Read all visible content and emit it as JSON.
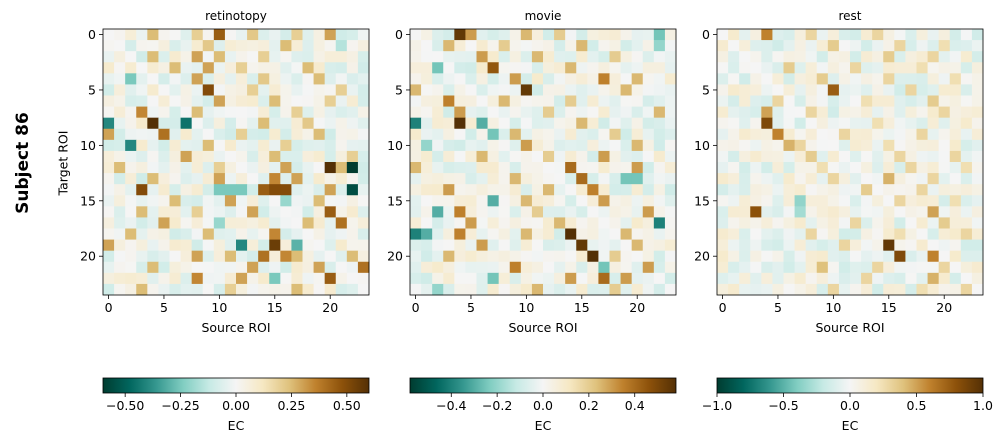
{
  "figure": {
    "subject_label": "Subject 86",
    "ylabel": "Target ROI",
    "colormap": "BrBG_r"
  },
  "colormap_stops": [
    "#003c30",
    "#01665e",
    "#35978f",
    "#80cdc1",
    "#c7eae5",
    "#f5f5f5",
    "#f6e8c3",
    "#dfc27d",
    "#bf812d",
    "#8c510a",
    "#543005"
  ],
  "chart_data": [
    {
      "type": "heatmap",
      "title": "retinotopy",
      "xlabel": "Source ROI",
      "ylabel": "Target ROI",
      "n": 24,
      "xticks": [
        0,
        5,
        10,
        15,
        20
      ],
      "yticks": [
        0,
        5,
        10,
        15,
        20
      ],
      "vmin": -0.6,
      "vmax": 0.6,
      "colorbar": {
        "label": "EC",
        "ticks": [
          -0.5,
          -0.25,
          0.0,
          0.25,
          0.5
        ],
        "tick_labels": [
          "−0.50",
          "−0.25",
          "0.00",
          "0.25",
          "0.50"
        ]
      },
      "salient": [
        [
          0,
          4,
          0.25
        ],
        [
          0,
          8,
          0.2
        ],
        [
          0,
          10,
          0.45
        ],
        [
          0,
          13,
          0.22
        ],
        [
          0,
          17,
          0.2
        ],
        [
          0,
          20,
          0.3
        ],
        [
          1,
          9,
          0.22
        ],
        [
          1,
          16,
          0.25
        ],
        [
          1,
          21,
          -0.15
        ],
        [
          2,
          4,
          0.25
        ],
        [
          2,
          8,
          0.3
        ],
        [
          2,
          10,
          0.25
        ],
        [
          2,
          14,
          0.2
        ],
        [
          3,
          6,
          0.25
        ],
        [
          3,
          9,
          0.3
        ],
        [
          3,
          12,
          0.2
        ],
        [
          3,
          18,
          0.25
        ],
        [
          4,
          2,
          -0.25
        ],
        [
          4,
          8,
          0.3
        ],
        [
          4,
          14,
          0.22
        ],
        [
          4,
          19,
          0.25
        ],
        [
          5,
          9,
          0.5
        ],
        [
          5,
          13,
          0.2
        ],
        [
          5,
          21,
          0.2
        ],
        [
          6,
          10,
          0.3
        ],
        [
          6,
          15,
          0.25
        ],
        [
          6,
          20,
          0.2
        ],
        [
          7,
          3,
          0.35
        ],
        [
          7,
          8,
          0.25
        ],
        [
          7,
          17,
          0.2
        ],
        [
          8,
          0,
          -0.4
        ],
        [
          8,
          4,
          0.6
        ],
        [
          8,
          7,
          -0.45
        ],
        [
          8,
          14,
          0.25
        ],
        [
          8,
          18,
          0.22
        ],
        [
          9,
          0,
          0.3
        ],
        [
          9,
          5,
          0.4
        ],
        [
          9,
          12,
          0.2
        ],
        [
          9,
          19,
          0.25
        ],
        [
          10,
          2,
          -0.4
        ],
        [
          10,
          9,
          0.25
        ],
        [
          10,
          16,
          0.2
        ],
        [
          11,
          7,
          0.3
        ],
        [
          11,
          15,
          0.25
        ],
        [
          11,
          22,
          0.2
        ],
        [
          12,
          1,
          0.25
        ],
        [
          12,
          10,
          0.2
        ],
        [
          12,
          16,
          0.3
        ],
        [
          12,
          20,
          0.65
        ],
        [
          12,
          21,
          0.25
        ],
        [
          12,
          22,
          -0.7
        ],
        [
          13,
          4,
          0.25
        ],
        [
          13,
          10,
          0.3
        ],
        [
          13,
          15,
          0.35
        ],
        [
          13,
          17,
          0.3
        ],
        [
          14,
          3,
          0.5
        ],
        [
          14,
          10,
          -0.25
        ],
        [
          14,
          11,
          -0.25
        ],
        [
          14,
          12,
          -0.25
        ],
        [
          14,
          14,
          0.45
        ],
        [
          14,
          15,
          0.5
        ],
        [
          14,
          16,
          0.5
        ],
        [
          14,
          20,
          0.3
        ],
        [
          14,
          22,
          -0.55
        ],
        [
          15,
          6,
          0.25
        ],
        [
          15,
          11,
          0.3
        ],
        [
          15,
          16,
          -0.2
        ],
        [
          15,
          19,
          0.25
        ],
        [
          16,
          3,
          0.25
        ],
        [
          16,
          8,
          0.2
        ],
        [
          16,
          13,
          0.3
        ],
        [
          16,
          20,
          0.45
        ],
        [
          17,
          5,
          0.3
        ],
        [
          17,
          10,
          -0.2
        ],
        [
          17,
          18,
          0.25
        ],
        [
          17,
          21,
          0.4
        ],
        [
          18,
          2,
          0.25
        ],
        [
          18,
          9,
          0.25
        ],
        [
          18,
          15,
          0.35
        ],
        [
          19,
          0,
          0.3
        ],
        [
          19,
          12,
          -0.4
        ],
        [
          19,
          15,
          0.55
        ],
        [
          19,
          17,
          -0.3
        ],
        [
          20,
          8,
          0.3
        ],
        [
          20,
          11,
          0.25
        ],
        [
          20,
          14,
          0.4
        ],
        [
          20,
          16,
          0.35
        ],
        [
          20,
          17,
          0.25
        ],
        [
          20,
          22,
          0.25
        ],
        [
          21,
          4,
          0.25
        ],
        [
          21,
          13,
          0.3
        ],
        [
          21,
          19,
          0.3
        ],
        [
          21,
          23,
          0.4
        ],
        [
          22,
          8,
          0.35
        ],
        [
          22,
          12,
          0.3
        ],
        [
          22,
          15,
          -0.25
        ],
        [
          22,
          20,
          0.45
        ],
        [
          23,
          3,
          0.25
        ],
        [
          23,
          11,
          0.2
        ],
        [
          23,
          17,
          0.25
        ]
      ]
    },
    {
      "type": "heatmap",
      "title": "movie",
      "xlabel": "Source ROI",
      "ylabel": "",
      "n": 24,
      "xticks": [
        0,
        5,
        10,
        15,
        20
      ],
      "yticks": [
        0,
        5,
        10,
        15,
        20
      ],
      "vmin": -0.58,
      "vmax": 0.58,
      "colorbar": {
        "label": "EC",
        "ticks": [
          -0.4,
          -0.2,
          0.0,
          0.2,
          0.4
        ],
        "tick_labels": [
          "−0.4",
          "−0.2",
          "0.0",
          "0.2",
          "0.4"
        ]
      },
      "salient": [
        [
          0,
          4,
          0.55
        ],
        [
          0,
          5,
          0.3
        ],
        [
          0,
          10,
          0.25
        ],
        [
          0,
          13,
          0.2
        ],
        [
          0,
          22,
          -0.25
        ],
        [
          1,
          3,
          0.25
        ],
        [
          1,
          8,
          0.2
        ],
        [
          1,
          15,
          0.25
        ],
        [
          1,
          22,
          -0.2
        ],
        [
          2,
          6,
          0.3
        ],
        [
          2,
          11,
          0.25
        ],
        [
          2,
          18,
          0.2
        ],
        [
          3,
          2,
          -0.25
        ],
        [
          3,
          7,
          0.45
        ],
        [
          3,
          14,
          0.25
        ],
        [
          4,
          9,
          0.3
        ],
        [
          4,
          17,
          0.35
        ],
        [
          4,
          20,
          0.25
        ],
        [
          5,
          0,
          0.25
        ],
        [
          5,
          10,
          0.55
        ],
        [
          5,
          19,
          0.25
        ],
        [
          6,
          3,
          0.35
        ],
        [
          6,
          8,
          0.25
        ],
        [
          6,
          14,
          0.2
        ],
        [
          7,
          4,
          0.3
        ],
        [
          7,
          12,
          0.2
        ],
        [
          7,
          22,
          0.25
        ],
        [
          8,
          0,
          -0.4
        ],
        [
          8,
          4,
          0.6
        ],
        [
          8,
          6,
          -0.3
        ],
        [
          8,
          15,
          0.25
        ],
        [
          9,
          7,
          -0.25
        ],
        [
          9,
          9,
          0.25
        ],
        [
          9,
          18,
          0.2
        ],
        [
          10,
          1,
          -0.2
        ],
        [
          10,
          10,
          0.3
        ],
        [
          10,
          20,
          0.25
        ],
        [
          11,
          6,
          0.25
        ],
        [
          11,
          12,
          0.2
        ],
        [
          11,
          17,
          0.3
        ],
        [
          12,
          0,
          0.25
        ],
        [
          12,
          14,
          0.4
        ],
        [
          12,
          20,
          0.3
        ],
        [
          13,
          9,
          0.25
        ],
        [
          13,
          15,
          0.4
        ],
        [
          13,
          19,
          -0.25
        ],
        [
          13,
          20,
          -0.25
        ],
        [
          14,
          3,
          0.3
        ],
        [
          14,
          12,
          0.25
        ],
        [
          14,
          16,
          0.35
        ],
        [
          15,
          7,
          -0.3
        ],
        [
          15,
          10,
          0.25
        ],
        [
          15,
          17,
          0.3
        ],
        [
          16,
          2,
          -0.3
        ],
        [
          16,
          4,
          0.35
        ],
        [
          16,
          11,
          0.2
        ],
        [
          16,
          21,
          0.3
        ],
        [
          17,
          5,
          0.3
        ],
        [
          17,
          13,
          0.25
        ],
        [
          17,
          22,
          -0.4
        ],
        [
          18,
          0,
          -0.4
        ],
        [
          18,
          1,
          -0.3
        ],
        [
          18,
          4,
          0.35
        ],
        [
          18,
          10,
          0.25
        ],
        [
          18,
          14,
          0.6
        ],
        [
          18,
          19,
          0.25
        ],
        [
          19,
          6,
          0.3
        ],
        [
          19,
          15,
          0.55
        ],
        [
          19,
          20,
          0.25
        ],
        [
          20,
          3,
          0.25
        ],
        [
          20,
          16,
          0.6
        ],
        [
          20,
          18,
          0.2
        ],
        [
          21,
          9,
          0.35
        ],
        [
          21,
          17,
          -0.25
        ],
        [
          21,
          21,
          0.3
        ],
        [
          22,
          7,
          -0.25
        ],
        [
          22,
          14,
          0.3
        ],
        [
          22,
          17,
          0.4
        ],
        [
          22,
          19,
          0.3
        ],
        [
          23,
          2,
          -0.2
        ],
        [
          23,
          11,
          0.25
        ],
        [
          23,
          18,
          0.2
        ]
      ]
    },
    {
      "type": "heatmap",
      "title": "rest",
      "xlabel": "Source ROI",
      "ylabel": "",
      "n": 24,
      "xticks": [
        0,
        5,
        10,
        15,
        20
      ],
      "yticks": [
        0,
        5,
        10,
        15,
        20
      ],
      "vmin": -1.0,
      "vmax": 1.0,
      "colorbar": {
        "label": "EC",
        "ticks": [
          -1.0,
          -0.5,
          0.0,
          0.5,
          1.0
        ],
        "tick_labels": [
          "−1.0",
          "−0.5",
          "0.0",
          "0.5",
          "1.0"
        ]
      },
      "salient": [
        [
          0,
          4,
          0.6
        ],
        [
          0,
          8,
          0.3
        ],
        [
          0,
          14,
          0.3
        ],
        [
          1,
          10,
          0.35
        ],
        [
          1,
          16,
          0.3
        ],
        [
          1,
          20,
          0.25
        ],
        [
          2,
          15,
          0.35
        ],
        [
          2,
          19,
          0.3
        ],
        [
          3,
          6,
          0.35
        ],
        [
          3,
          12,
          0.3
        ],
        [
          3,
          18,
          0.25
        ],
        [
          4,
          9,
          0.35
        ],
        [
          4,
          15,
          0.3
        ],
        [
          4,
          21,
          0.25
        ],
        [
          5,
          10,
          0.75
        ],
        [
          5,
          17,
          0.3
        ],
        [
          6,
          5,
          0.3
        ],
        [
          6,
          13,
          0.25
        ],
        [
          6,
          19,
          0.35
        ],
        [
          7,
          4,
          0.5
        ],
        [
          7,
          8,
          0.3
        ],
        [
          7,
          20,
          0.3
        ],
        [
          8,
          4,
          0.85
        ],
        [
          8,
          14,
          0.25
        ],
        [
          9,
          5,
          0.6
        ],
        [
          9,
          11,
          0.3
        ],
        [
          9,
          18,
          0.3
        ],
        [
          10,
          6,
          0.45
        ],
        [
          10,
          7,
          0.3
        ],
        [
          10,
          15,
          0.25
        ],
        [
          11,
          8,
          0.35
        ],
        [
          11,
          16,
          0.3
        ],
        [
          11,
          21,
          0.3
        ],
        [
          12,
          9,
          0.25
        ],
        [
          12,
          17,
          0.3
        ],
        [
          12,
          22,
          0.25
        ],
        [
          13,
          10,
          0.3
        ],
        [
          13,
          15,
          0.45
        ],
        [
          13,
          19,
          0.3
        ],
        [
          14,
          13,
          0.35
        ],
        [
          14,
          18,
          0.3
        ],
        [
          15,
          7,
          -0.35
        ],
        [
          15,
          16,
          0.3
        ],
        [
          15,
          21,
          0.25
        ],
        [
          16,
          3,
          0.8
        ],
        [
          16,
          7,
          -0.3
        ],
        [
          16,
          19,
          0.5
        ],
        [
          17,
          12,
          0.3
        ],
        [
          17,
          20,
          0.35
        ],
        [
          18,
          8,
          0.3
        ],
        [
          18,
          16,
          0.25
        ],
        [
          18,
          22,
          0.3
        ],
        [
          19,
          15,
          0.95
        ],
        [
          19,
          11,
          0.3
        ],
        [
          20,
          16,
          0.85
        ],
        [
          20,
          19,
          0.6
        ],
        [
          21,
          9,
          0.4
        ],
        [
          21,
          14,
          0.3
        ],
        [
          21,
          20,
          0.3
        ],
        [
          22,
          13,
          0.3
        ],
        [
          22,
          19,
          0.45
        ],
        [
          23,
          10,
          0.3
        ],
        [
          23,
          18,
          0.25
        ],
        [
          23,
          22,
          0.3
        ]
      ]
    }
  ]
}
